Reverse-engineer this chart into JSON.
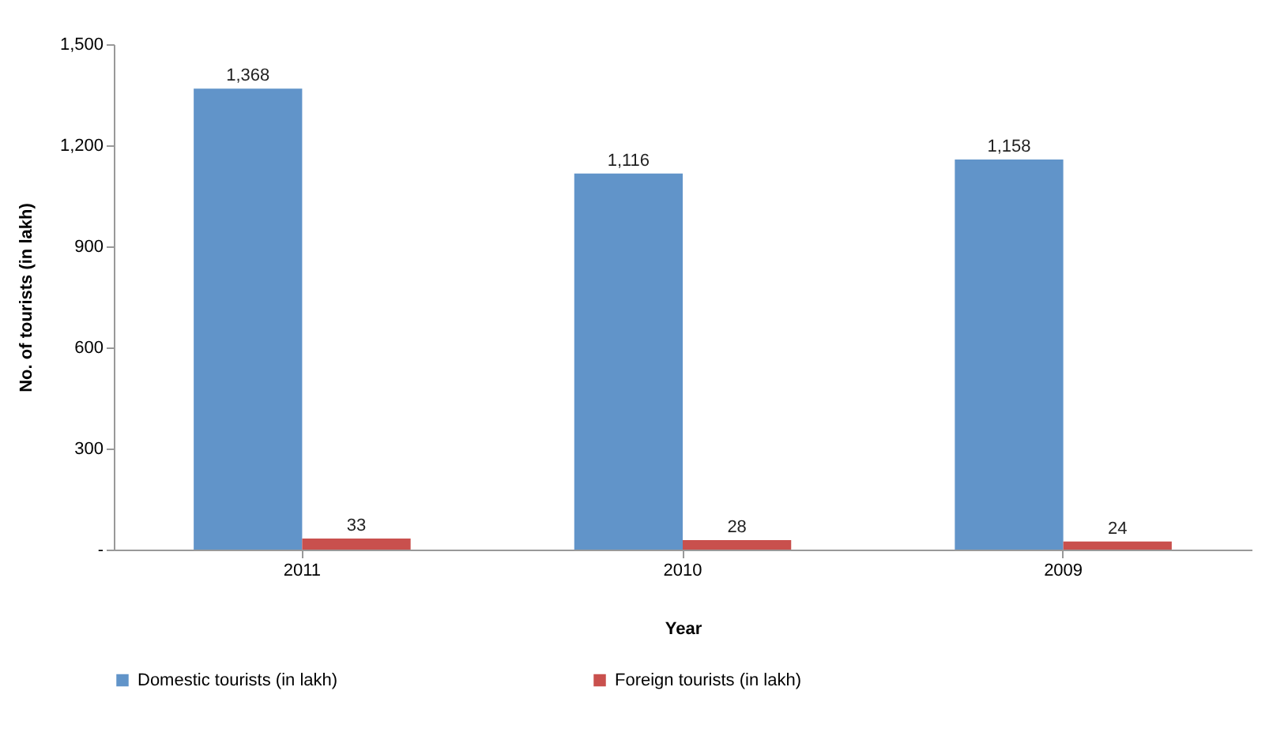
{
  "chart_data": {
    "type": "bar",
    "xlabel": "Year",
    "ylabel": "No. of tourists (in lakh)",
    "categories": [
      "2011",
      "2010",
      "2009"
    ],
    "series": [
      {
        "name": "Domestic tourists (in lakh)",
        "color": "#6194c9",
        "values": [
          1368,
          1116,
          1158
        ],
        "value_labels": [
          "1,368",
          "1,116",
          "1,158"
        ]
      },
      {
        "name": "Foreign tourists (in lakh)",
        "color": "#c9504d",
        "values": [
          33,
          28,
          24
        ],
        "value_labels": [
          "33",
          "28",
          "24"
        ]
      }
    ],
    "ylim": [
      0,
      1500
    ],
    "yticks": [
      {
        "value": 0,
        "label": "-"
      },
      {
        "value": 300,
        "label": "300"
      },
      {
        "value": 600,
        "label": "600"
      },
      {
        "value": 900,
        "label": "900"
      },
      {
        "value": 1200,
        "label": "1,200"
      },
      {
        "value": 1500,
        "label": "1,500"
      }
    ],
    "grid": false,
    "legend": "bottom"
  }
}
